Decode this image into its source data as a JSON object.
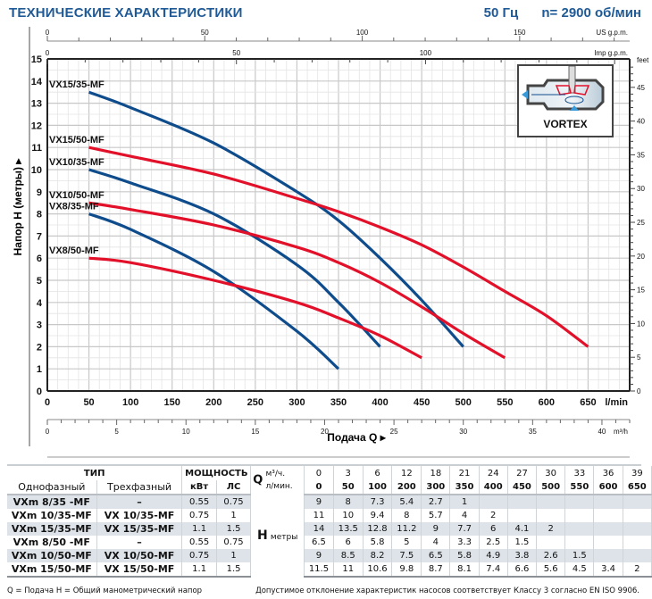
{
  "header": {
    "title": "ТЕХНИЧЕСКИЕ ХАРАКТЕРИСТИКИ",
    "frequency": "50 Гц",
    "speed": "n= 2900 об/мин"
  },
  "colors": {
    "title": "#1f5a96",
    "series_35": "#0f4c8c",
    "series_50": "#e3102a",
    "grid_major": "#c8c8c8",
    "grid_minor": "#e4e4e4"
  },
  "chart_data": {
    "type": "line",
    "title": "ТЕХНИЧЕСКИЕ ХАРАКТЕРИСТИКИ",
    "xlabel": "Подача Q",
    "ylabel": "Напор H (метры)",
    "xlim": [
      0,
      700
    ],
    "ylim": [
      0,
      15
    ],
    "grid": true,
    "x_unit": "l/min",
    "x_ticks": [
      0,
      50,
      100,
      150,
      200,
      250,
      300,
      350,
      400,
      450,
      500,
      550,
      600,
      650
    ],
    "y_ticks": [
      0,
      1,
      2,
      3,
      4,
      5,
      6,
      7,
      8,
      9,
      10,
      11,
      12,
      13,
      14,
      15
    ],
    "secondary_axes": {
      "us_gpm": {
        "label": "US g.p.m.",
        "ticks": [
          0,
          50,
          100,
          150
        ]
      },
      "imp_gpm": {
        "label": "Imp g.p.m.",
        "ticks": [
          0,
          50,
          100
        ]
      },
      "m3h": {
        "label": "m³/h",
        "ticks": [
          0,
          5,
          10,
          15,
          20,
          25,
          30,
          35,
          40
        ]
      },
      "feet": {
        "label": "feet",
        "ticks": [
          0,
          5,
          10,
          15,
          20,
          25,
          30,
          35,
          40,
          45
        ]
      }
    },
    "x_flow_lmin": [
      0,
      50,
      100,
      200,
      300,
      350,
      400,
      450,
      500,
      550,
      600,
      650
    ],
    "series": [
      {
        "name": "VX15/35-MF",
        "color_key": "series_35",
        "x": [
          50,
          100,
          200,
          300,
          350,
          400,
          450,
          500
        ],
        "y": [
          13.5,
          12.8,
          11.2,
          9,
          7.7,
          6,
          4.1,
          2
        ]
      },
      {
        "name": "VX15/50-MF",
        "color_key": "series_50",
        "x": [
          50,
          100,
          200,
          300,
          350,
          400,
          450,
          500,
          550,
          600,
          650
        ],
        "y": [
          11,
          10.6,
          9.8,
          8.7,
          8.1,
          7.4,
          6.6,
          5.6,
          4.5,
          3.4,
          2
        ]
      },
      {
        "name": "VX10/35-MF",
        "color_key": "series_35",
        "x": [
          50,
          100,
          200,
          300,
          350,
          400
        ],
        "y": [
          10,
          9.4,
          8,
          5.7,
          4,
          2
        ]
      },
      {
        "name": "VX10/50-MF",
        "color_key": "series_50",
        "x": [
          50,
          100,
          200,
          300,
          350,
          400,
          450,
          500,
          550
        ],
        "y": [
          8.5,
          8.2,
          7.5,
          6.5,
          5.8,
          4.9,
          3.8,
          2.6,
          1.5
        ]
      },
      {
        "name": "VX8/35-MF",
        "color_key": "series_35",
        "x": [
          50,
          100,
          200,
          300,
          350
        ],
        "y": [
          8,
          7.3,
          5.4,
          2.7,
          1
        ]
      },
      {
        "name": "VX8/50-MF",
        "color_key": "series_50",
        "x": [
          50,
          100,
          200,
          300,
          350,
          400,
          450
        ],
        "y": [
          6,
          5.8,
          5,
          4,
          3.3,
          2.5,
          1.5
        ]
      }
    ],
    "annotations": [
      "VORTEX"
    ]
  },
  "axis_labels": {
    "x": "Подача Q",
    "y": "Напор H (метры)",
    "lmin": "l/min",
    "m3h": "m³/h",
    "us": "US g.p.m.",
    "imp": "Imp g.p.m.",
    "feet": "feet"
  },
  "vortex_label": "VORTEX",
  "table": {
    "type_header": "ТИП",
    "power_header": "МОЩНОСТЬ",
    "single_phase": "Однофазный",
    "three_phase": "Трехфазный",
    "kw": "кВт",
    "hp": "ЛС",
    "q_label": "Q",
    "q_m3h_unit": "м³/ч.",
    "q_lmin_unit": "л/мин.",
    "h_label": "H",
    "h_unit": "метры",
    "q_m3h": [
      "0",
      "3",
      "6",
      "12",
      "18",
      "21",
      "24",
      "27",
      "30",
      "33",
      "36",
      "39"
    ],
    "q_lmin": [
      "0",
      "50",
      "100",
      "200",
      "300",
      "350",
      "400",
      "450",
      "500",
      "550",
      "600",
      "650"
    ],
    "rows": [
      {
        "single": "VXm 8/35  -MF",
        "three": "–",
        "kw": "0.55",
        "hp": "0.75",
        "h": [
          "9",
          "8",
          "7.3",
          "5.4",
          "2.7",
          "1",
          "",
          "",
          "",
          "",
          "",
          ""
        ]
      },
      {
        "single": "VXm 10/35-MF",
        "three": "VX 10/35-MF",
        "kw": "0.75",
        "hp": "1",
        "h": [
          "11",
          "10",
          "9.4",
          "8",
          "5.7",
          "4",
          "2",
          "",
          "",
          "",
          "",
          ""
        ]
      },
      {
        "single": "VXm 15/35-MF",
        "three": "VX 15/35-MF",
        "kw": "1.1",
        "hp": "1.5",
        "h": [
          "14",
          "13.5",
          "12.8",
          "11.2",
          "9",
          "7.7",
          "6",
          "4.1",
          "2",
          "",
          "",
          ""
        ]
      },
      {
        "single": "VXm 8/50  -MF",
        "three": "–",
        "kw": "0.55",
        "hp": "0.75",
        "h": [
          "6.5",
          "6",
          "5.8",
          "5",
          "4",
          "3.3",
          "2.5",
          "1.5",
          "",
          "",
          "",
          ""
        ]
      },
      {
        "single": "VXm 10/50-MF",
        "three": "VX 10/50-MF",
        "kw": "0.75",
        "hp": "1",
        "h": [
          "9",
          "8.5",
          "8.2",
          "7.5",
          "6.5",
          "5.8",
          "4.9",
          "3.8",
          "2.6",
          "1.5",
          "",
          ""
        ]
      },
      {
        "single": "VXm 15/50-MF",
        "three": "VX 15/50-MF",
        "kw": "1.1",
        "hp": "1.5",
        "h": [
          "11.5",
          "11",
          "10.6",
          "9.8",
          "8.7",
          "8.1",
          "7.4",
          "6.6",
          "5.6",
          "4.5",
          "3.4",
          "2"
        ]
      }
    ]
  },
  "footer": {
    "legend": "Q = Подача  H = Общий манометрический напор",
    "note": "Допустимое отклонение характеристик насосов соответствует Классу 3 согласно EN ISO 9906."
  }
}
